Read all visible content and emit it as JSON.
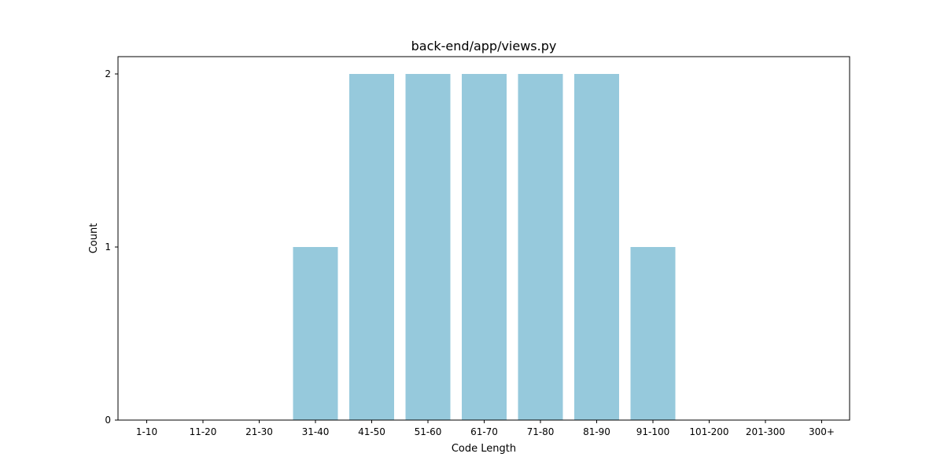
{
  "chart_data": {
    "type": "bar",
    "title": "back-end/app/views.py",
    "xlabel": "Code Length",
    "ylabel": "Count",
    "categories": [
      "1-10",
      "11-20",
      "21-30",
      "31-40",
      "41-50",
      "51-60",
      "61-70",
      "71-80",
      "81-90",
      "91-100",
      "101-200",
      "201-300",
      "300+"
    ],
    "values": [
      0,
      0,
      0,
      1,
      2,
      2,
      2,
      2,
      2,
      1,
      0,
      0,
      0
    ],
    "ylim": [
      0,
      2.1
    ],
    "yticks": [
      0,
      1,
      2
    ],
    "grid": false,
    "bar_color": "#96c9dc"
  }
}
